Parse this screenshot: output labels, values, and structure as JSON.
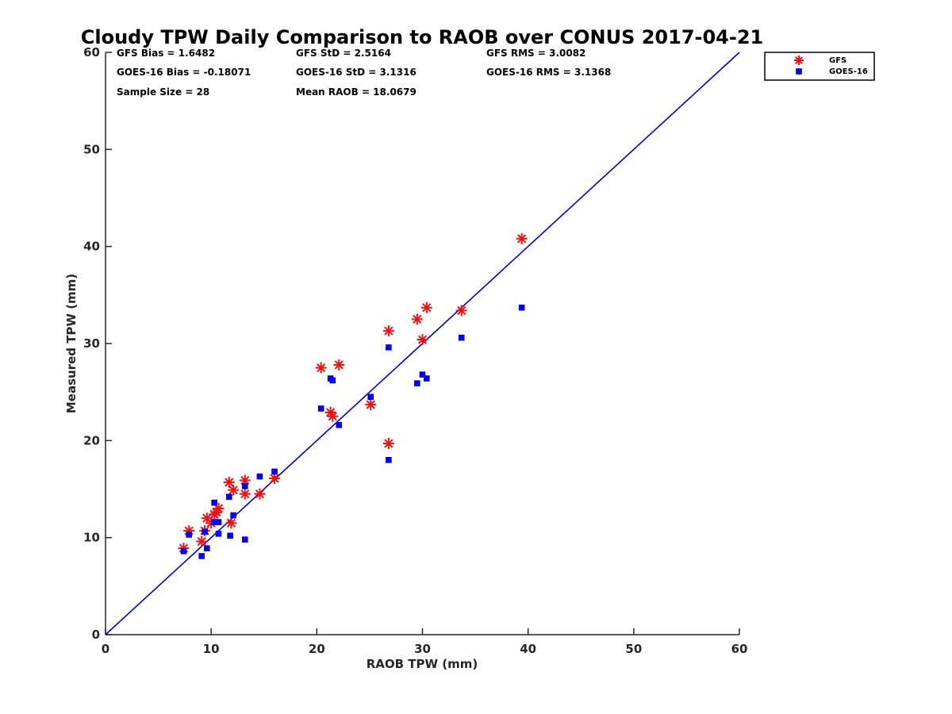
{
  "chart_data": {
    "type": "scatter",
    "title": "Cloudy TPW Daily Comparison to RAOB over CONUS 2017-04-21",
    "xlabel": "RAOB TPW (mm)",
    "ylabel": "Measured TPW (mm)",
    "xlim": [
      0,
      60
    ],
    "ylim": [
      0,
      60
    ],
    "xticks": [
      0,
      10,
      20,
      30,
      40,
      50,
      60
    ],
    "yticks": [
      0,
      10,
      20,
      30,
      40,
      50,
      60
    ],
    "grid": false,
    "legend_position": "top-right",
    "stats": [
      "GFS Bias = 1.6482",
      "GFS StD = 2.5164",
      "GFS RMS = 3.0082",
      "GOES-16 Bias = -0.18071",
      "GOES-16 StD = 3.1316",
      "GOES-16 RMS = 3.1368",
      "Sample Size = 28",
      "Mean RAOB = 18.0679"
    ],
    "reference_line": {
      "x": [
        0,
        60
      ],
      "y": [
        0,
        60
      ],
      "color": "#0000cc"
    },
    "series": [
      {
        "name": "GFS",
        "marker": "asterisk",
        "color": "#ee1111",
        "points": [
          [
            7.4,
            8.9
          ],
          [
            7.9,
            10.7
          ],
          [
            9.1,
            9.6
          ],
          [
            9.4,
            10.7
          ],
          [
            9.6,
            12.0
          ],
          [
            10.0,
            11.5
          ],
          [
            10.3,
            12.4
          ],
          [
            10.5,
            12.6
          ],
          [
            10.7,
            13.0
          ],
          [
            11.7,
            15.7
          ],
          [
            11.9,
            11.5
          ],
          [
            12.1,
            14.9
          ],
          [
            13.2,
            14.5
          ],
          [
            13.2,
            15.9
          ],
          [
            14.6,
            14.5
          ],
          [
            16.0,
            16.1
          ],
          [
            20.4,
            27.5
          ],
          [
            21.3,
            22.9
          ],
          [
            21.5,
            22.5
          ],
          [
            22.1,
            27.8
          ],
          [
            25.1,
            23.7
          ],
          [
            26.8,
            31.3
          ],
          [
            26.8,
            19.7
          ],
          [
            29.5,
            32.5
          ],
          [
            30.0,
            30.4
          ],
          [
            30.4,
            33.7
          ],
          [
            33.7,
            33.4
          ],
          [
            39.4,
            40.8
          ]
        ]
      },
      {
        "name": "GOES-16",
        "marker": "square",
        "color": "#0000ee",
        "points": [
          [
            7.4,
            8.6
          ],
          [
            7.9,
            10.3
          ],
          [
            9.1,
            8.1
          ],
          [
            9.4,
            10.6
          ],
          [
            9.6,
            8.9
          ],
          [
            10.3,
            13.6
          ],
          [
            10.3,
            11.6
          ],
          [
            10.7,
            11.6
          ],
          [
            10.7,
            10.4
          ],
          [
            11.7,
            14.2
          ],
          [
            11.8,
            10.2
          ],
          [
            12.1,
            12.3
          ],
          [
            13.2,
            15.3
          ],
          [
            13.2,
            9.8
          ],
          [
            14.6,
            16.3
          ],
          [
            16.0,
            16.8
          ],
          [
            20.4,
            23.3
          ],
          [
            21.3,
            26.4
          ],
          [
            21.5,
            26.2
          ],
          [
            22.1,
            21.6
          ],
          [
            25.1,
            24.5
          ],
          [
            26.8,
            29.6
          ],
          [
            26.8,
            18.0
          ],
          [
            29.5,
            25.9
          ],
          [
            30.0,
            26.8
          ],
          [
            30.4,
            26.4
          ],
          [
            33.7,
            30.6
          ],
          [
            39.4,
            33.7
          ]
        ]
      }
    ]
  }
}
